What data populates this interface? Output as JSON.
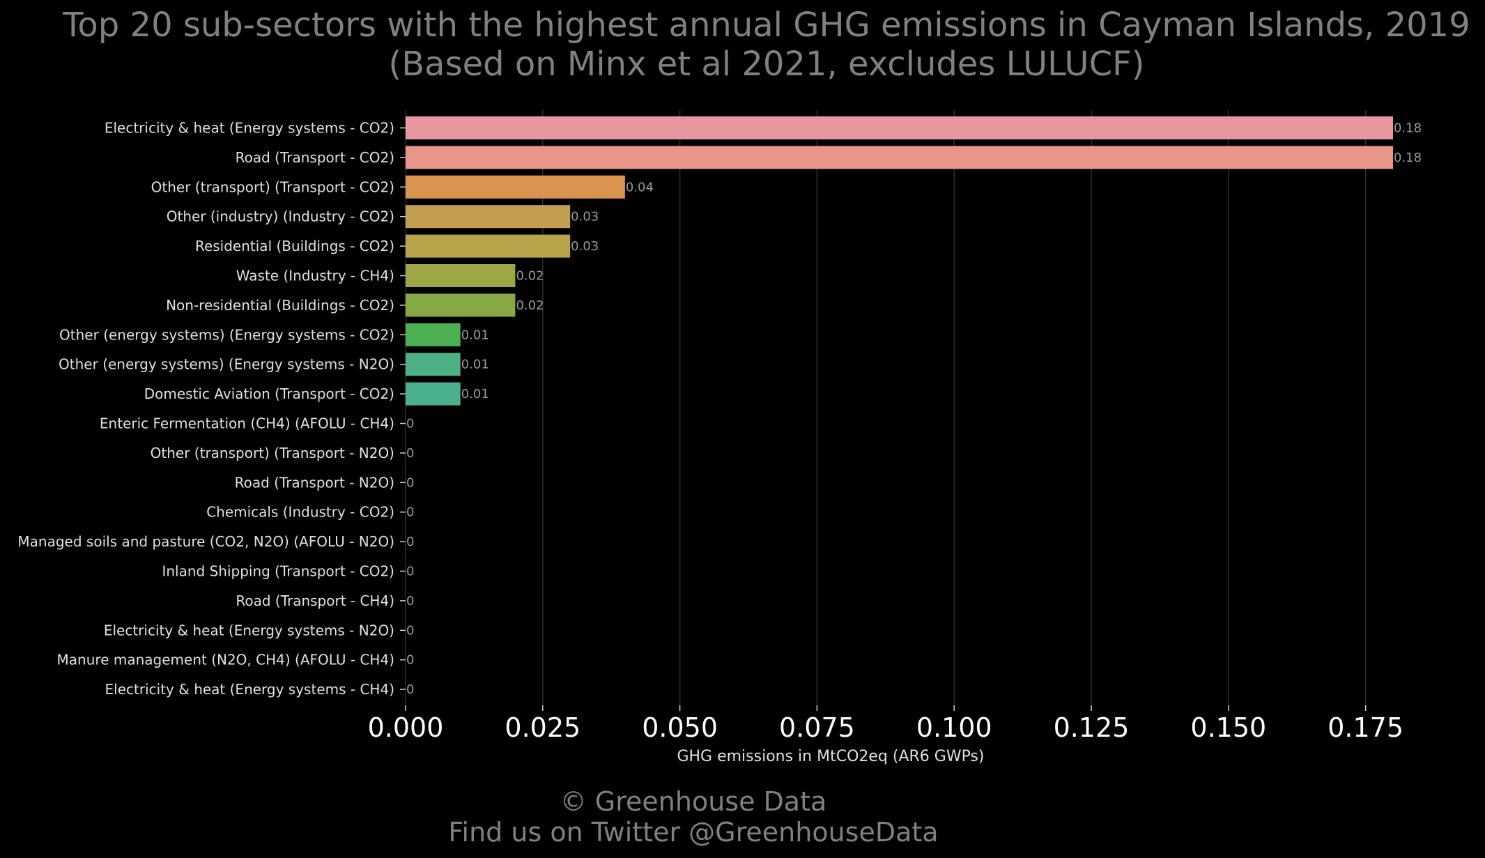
{
  "chart_data": {
    "type": "bar",
    "orientation": "horizontal",
    "title": "Top 20 sub-sectors with the highest annual GHG emissions in Cayman Islands, 2019",
    "subtitle": "(Based on Minx et al 2021, excludes LULUCF)",
    "xlabel": "GHG emissions in MtCO2eq (AR6 GWPs)",
    "ylabel": "",
    "xlim": [
      0,
      0.18
    ],
    "x_ticks": [
      "0.000",
      "0.025",
      "0.050",
      "0.075",
      "0.100",
      "0.125",
      "0.150",
      "0.175"
    ],
    "grid": "vertical",
    "categories": [
      "Electricity & heat (Energy systems - CO2)",
      "Road (Transport - CO2)",
      "Other (transport) (Transport - CO2)",
      "Other (industry) (Industry - CO2)",
      "Residential (Buildings - CO2)",
      "Waste (Industry - CH4)",
      "Non-residential (Buildings - CO2)",
      "Other (energy systems) (Energy systems - CO2)",
      "Other (energy systems) (Energy systems - N2O)",
      "Domestic Aviation (Transport - CO2)",
      "Enteric Fermentation (CH4) (AFOLU - CH4)",
      "Other (transport) (Transport - N2O)",
      "Road (Transport - N2O)",
      "Chemicals (Industry - CO2)",
      "Managed soils and pasture (CO2, N2O) (AFOLU - N2O)",
      "Inland Shipping (Transport - CO2)",
      "Road (Transport - CH4)",
      "Electricity & heat (Energy systems - N2O)",
      "Manure management (N2O, CH4) (AFOLU - CH4)",
      "Electricity & heat (Energy systems - CH4)"
    ],
    "values": [
      0.18,
      0.18,
      0.04,
      0.03,
      0.03,
      0.02,
      0.02,
      0.01,
      0.01,
      0.01,
      0,
      0,
      0,
      0,
      0,
      0,
      0,
      0,
      0,
      0
    ],
    "value_labels": [
      "0.18",
      "0.18",
      "0.04",
      "0.03",
      "0.03",
      "0.02",
      "0.02",
      "0.01",
      "0.01",
      "0.01",
      "0",
      "0",
      "0",
      "0",
      "0",
      "0",
      "0",
      "0",
      "0",
      "0"
    ],
    "colors": [
      "#e8969f",
      "#e8968a",
      "#d9944f",
      "#c49e50",
      "#b5a44a",
      "#9da746",
      "#86a945",
      "#4caf50",
      "#4daf84",
      "#4aaf8f",
      "#4aae9c",
      "#4aadad",
      "#4aa9bb",
      "#4ea4c7",
      "#6b9ad4",
      "#8d90da",
      "#ab86d8",
      "#c47ecf",
      "#d47fbf",
      "#df84ad"
    ]
  },
  "credits": {
    "line1": "© Greenhouse Data",
    "line2": "Find us on Twitter @GreenhouseData"
  }
}
